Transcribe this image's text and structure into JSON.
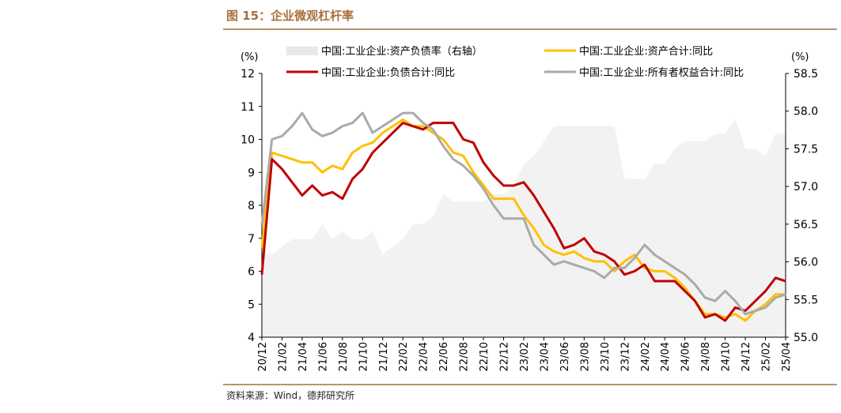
{
  "figure": {
    "title": "图 15：企业微观杠杆率",
    "source": "资料来源：Wind，德邦研究所"
  },
  "chart_data": {
    "type": "line",
    "left_axis_unit": "(%)",
    "right_axis_unit": "(%)",
    "ylim_left": [
      4,
      12
    ],
    "ylim_right": [
      55.0,
      58.5
    ],
    "grid": false,
    "legend_position": "top",
    "legend_labels": [
      "中国:工业企业:资产负债率（右轴）",
      "中国:工业企业:资产合计:同比",
      "中国:工业企业:负债合计:同比",
      "中国:工业企业:所有者权益合计:同比"
    ],
    "x": [
      "20/12",
      "21/01",
      "21/02",
      "21/03",
      "21/04",
      "21/05",
      "21/06",
      "21/07",
      "21/08",
      "21/09",
      "21/10",
      "21/11",
      "21/12",
      "22/01",
      "22/02",
      "22/03",
      "22/04",
      "22/05",
      "22/06",
      "22/07",
      "22/08",
      "22/09",
      "22/10",
      "22/11",
      "22/12",
      "23/01",
      "23/02",
      "23/03",
      "23/04",
      "23/05",
      "23/06",
      "23/07",
      "23/08",
      "23/09",
      "23/10",
      "23/11",
      "23/12",
      "24/01",
      "24/02",
      "24/03",
      "24/04",
      "24/05",
      "24/06",
      "24/07",
      "24/08",
      "24/09",
      "24/10",
      "24/11",
      "24/12",
      "25/01",
      "25/02",
      "25/03",
      "25/04"
    ],
    "x_tick_labels": [
      "20/12",
      "21/02",
      "21/04",
      "21/06",
      "21/08",
      "21/10",
      "21/12",
      "22/02",
      "22/04",
      "22/06",
      "22/08",
      "22/10",
      "22/12",
      "23/02",
      "23/04",
      "23/06",
      "23/08",
      "23/10",
      "23/12",
      "24/02",
      "24/04",
      "24/06",
      "24/08",
      "24/10",
      "24/12",
      "25/02",
      "25/04"
    ],
    "y_left_ticks": [
      4,
      5,
      6,
      7,
      8,
      9,
      10,
      11,
      12
    ],
    "y_right_ticks": [
      "55.0",
      "55.5",
      "56.0",
      "56.5",
      "57.0",
      "57.5",
      "58.0",
      "58.5"
    ],
    "series": [
      {
        "name": "中国:工业企业:资产负债率（右轴）",
        "axis": "right",
        "style": "area",
        "color": "#f2f2f2",
        "values": [
          56.1,
          56.1,
          56.2,
          56.3,
          56.3,
          56.3,
          56.5,
          56.3,
          56.4,
          56.3,
          56.3,
          56.4,
          56.1,
          56.2,
          56.3,
          56.5,
          56.5,
          56.6,
          56.9,
          56.8,
          56.8,
          56.8,
          56.8,
          56.9,
          56.9,
          57.0,
          57.3,
          57.4,
          57.6,
          57.8,
          57.8,
          57.8,
          57.8,
          57.8,
          57.8,
          57.8,
          57.1,
          57.1,
          57.1,
          57.3,
          57.3,
          57.5,
          57.6,
          57.6,
          57.6,
          57.7,
          57.7,
          57.9,
          57.5,
          57.5,
          57.4,
          57.7,
          57.7
        ]
      },
      {
        "name": "中国:工业企业:资产合计:同比",
        "axis": "left",
        "style": "line",
        "color": "#ffc000",
        "values": [
          6.7,
          9.6,
          9.5,
          9.4,
          9.3,
          9.3,
          9.0,
          9.2,
          9.1,
          9.6,
          9.8,
          9.9,
          10.2,
          10.4,
          10.6,
          10.4,
          10.4,
          10.2,
          10.0,
          9.6,
          9.5,
          9.0,
          8.6,
          8.2,
          8.2,
          8.2,
          7.7,
          7.3,
          6.8,
          6.6,
          6.5,
          6.6,
          6.4,
          6.3,
          6.3,
          6.0,
          6.3,
          6.5,
          6.1,
          6.0,
          6.0,
          5.8,
          5.5,
          5.1,
          4.7,
          4.7,
          4.6,
          4.7,
          4.5,
          4.8,
          5.0,
          5.3,
          5.3
        ]
      },
      {
        "name": "中国:工业企业:负债合计:同比",
        "axis": "left",
        "style": "line",
        "color": "#c00000",
        "values": [
          5.9,
          9.4,
          9.1,
          8.7,
          8.3,
          8.6,
          8.3,
          8.4,
          8.2,
          8.8,
          9.1,
          9.6,
          9.9,
          10.2,
          10.5,
          10.4,
          10.3,
          10.5,
          10.5,
          10.5,
          10.0,
          9.9,
          9.3,
          8.9,
          8.6,
          8.6,
          8.7,
          8.3,
          7.8,
          7.3,
          6.7,
          6.8,
          7.0,
          6.6,
          6.5,
          6.3,
          5.9,
          6.0,
          6.2,
          5.7,
          5.7,
          5.7,
          5.4,
          5.1,
          4.6,
          4.7,
          4.5,
          4.9,
          4.8,
          5.1,
          5.4,
          5.8,
          5.7
        ]
      },
      {
        "name": "中国:工业企业:所有者权益合计:同比",
        "axis": "left",
        "style": "line",
        "color": "#aaaaaa",
        "values": [
          7.4,
          10.0,
          10.1,
          10.4,
          10.8,
          10.3,
          10.1,
          10.2,
          10.4,
          10.5,
          10.8,
          10.2,
          10.4,
          10.6,
          10.8,
          10.8,
          10.5,
          10.3,
          9.8,
          9.4,
          9.2,
          8.9,
          8.5,
          8.0,
          7.6,
          7.6,
          7.6,
          6.8,
          6.5,
          6.2,
          6.3,
          6.2,
          6.1,
          6.0,
          5.8,
          6.1,
          6.1,
          6.4,
          6.8,
          6.5,
          6.3,
          6.1,
          5.9,
          5.6,
          5.2,
          5.1,
          5.4,
          5.1,
          4.7,
          4.8,
          4.9,
          5.2,
          5.3
        ]
      }
    ]
  }
}
